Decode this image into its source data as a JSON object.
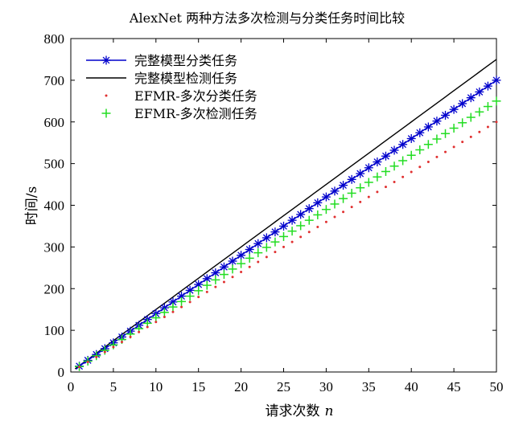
{
  "chart_data": {
    "type": "line",
    "title": "AlexNet 两种方法多次检测与分类任务时间比较",
    "xlabel": "请求次数",
    "xlabel_var": "n",
    "ylabel": "时间/s",
    "xlim": [
      0,
      50
    ],
    "ylim": [
      0,
      800
    ],
    "x_ticks": [
      0,
      5,
      10,
      15,
      20,
      25,
      30,
      35,
      40,
      45,
      50
    ],
    "y_ticks": [
      0,
      100,
      200,
      300,
      400,
      500,
      600,
      700,
      800
    ],
    "grid": false,
    "legend_position": "top-left",
    "series": [
      {
        "name": "完整模型分类任务",
        "marker": "asterisk",
        "line": "solid",
        "color": "#0000cc",
        "x_start": 1,
        "x_end": 50,
        "x_step": 1,
        "y_start": 14,
        "y_end": 700
      },
      {
        "name": "完整模型检测任务",
        "marker": "none",
        "line": "solid",
        "color": "#000000",
        "x_start": 0.5,
        "x_end": 50,
        "x_step": 0.5,
        "y_start": 7.5,
        "y_end": 750
      },
      {
        "name": "EFMR-多次分类任务",
        "marker": "dot",
        "line": "none",
        "color": "#e03030",
        "x_start": 1,
        "x_end": 50,
        "x_step": 1,
        "y_start": 12,
        "y_end": 600
      },
      {
        "name": "EFMR-多次检测任务",
        "marker": "plus",
        "line": "none",
        "color": "#22dd22",
        "x_start": 1,
        "x_end": 50,
        "x_step": 1,
        "y_start": 13,
        "y_end": 650
      }
    ]
  }
}
